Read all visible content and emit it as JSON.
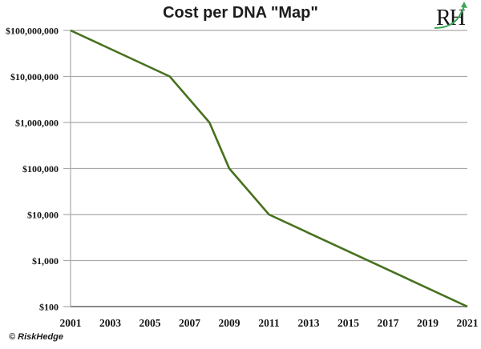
{
  "header": {
    "logo_text": "RH",
    "logo_green": "#3aa657"
  },
  "footer": {
    "credit": "© RiskHedge"
  },
  "chart_data": {
    "type": "line",
    "title": "Cost per DNA \"Map\"",
    "xlabel": "",
    "ylabel": "",
    "y_scale": "log",
    "grid": "horizontal",
    "legend": "none",
    "x_range": [
      2001,
      2021
    ],
    "y_range": [
      100,
      100000000
    ],
    "x_tick_values": [
      2001,
      2003,
      2005,
      2007,
      2009,
      2011,
      2013,
      2015,
      2017,
      2019,
      2021
    ],
    "x_tick_labels": [
      "2001",
      "2003",
      "2005",
      "2007",
      "2009",
      "2011",
      "2013",
      "2015",
      "2017",
      "2019",
      "2021"
    ],
    "y_tick_values": [
      100000000,
      10000000,
      1000000,
      100000,
      10000,
      1000,
      100
    ],
    "y_tick_labels": [
      "$100,000,000",
      "$10,000,000",
      "$1,000,000",
      "$100,000",
      "$10,000",
      "$1,000",
      "$100"
    ],
    "series": [
      {
        "points": [
          [
            2001,
            100000000
          ],
          [
            2006,
            10000000
          ],
          [
            2008,
            1000000
          ],
          [
            2009,
            100000
          ],
          [
            2011,
            10000
          ],
          [
            2021,
            100
          ]
        ]
      }
    ],
    "line_color": "#47711d",
    "grid_color": "#a9a9a9",
    "axis_color": "#a9a9a9",
    "bottom_axis_color": "#8a8a8a",
    "text_color": "#141414"
  }
}
